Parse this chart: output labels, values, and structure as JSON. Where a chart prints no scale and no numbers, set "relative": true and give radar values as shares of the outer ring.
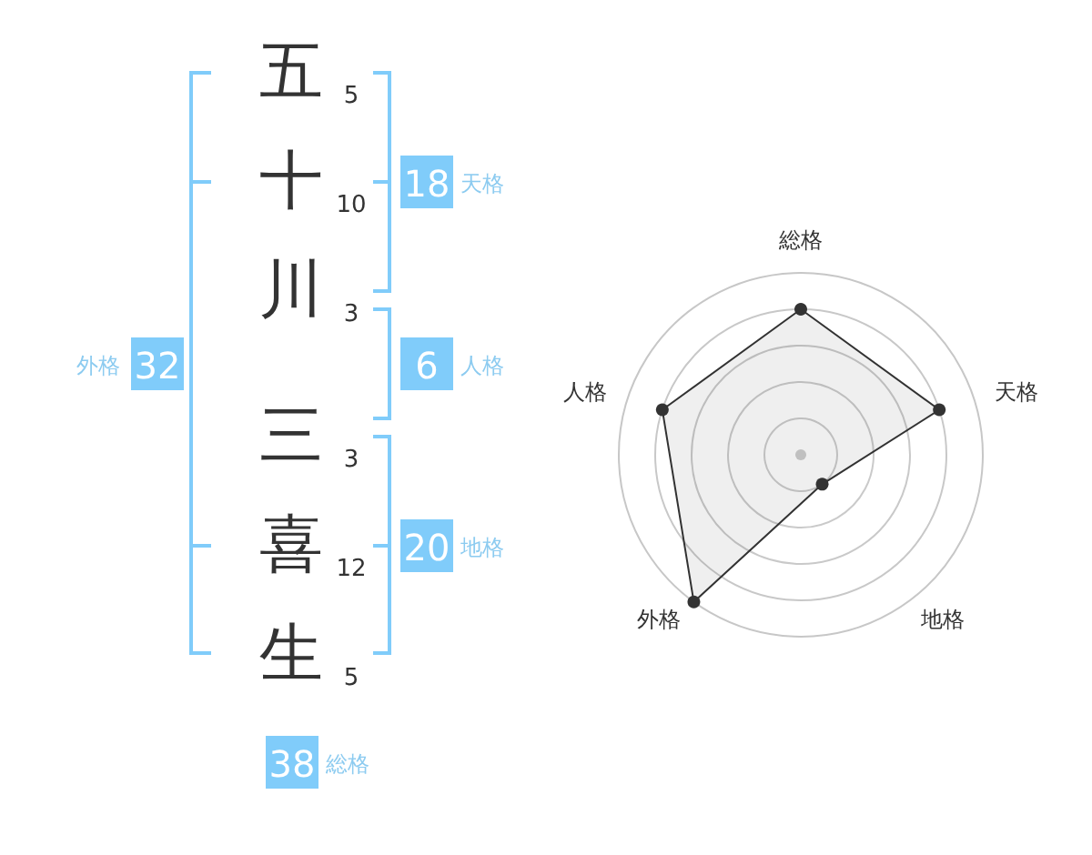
{
  "chart_data": [
    {
      "type": "other",
      "categories": [
        "五",
        "十",
        "川",
        "三",
        "喜",
        "生"
      ],
      "values": [
        5,
        10,
        3,
        3,
        12,
        5
      ],
      "data_labels": true,
      "annotations": [
        "18",
        "天格",
        "6",
        "人格",
        "20",
        "地格",
        "32",
        "外格",
        "38",
        "総格"
      ]
    },
    {
      "type": "radar",
      "categories": [
        "総格",
        "天格",
        "地格",
        "外格",
        "人格"
      ],
      "relative": true,
      "series": [
        {
          "color": "#333333",
          "values": [
            0.8,
            0.8,
            0.2,
            1.0,
            0.8
          ]
        }
      ],
      "marker": "circle",
      "grid": true
    }
  ]
}
